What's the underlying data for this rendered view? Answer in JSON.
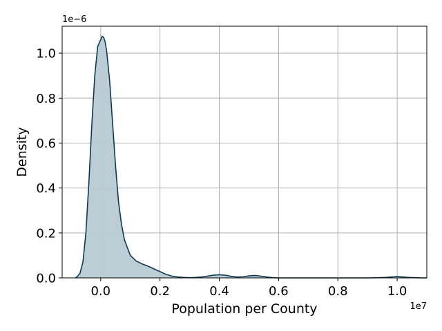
{
  "chart_data": {
    "type": "area",
    "title": "",
    "xlabel": "Population per County",
    "ylabel": "Density",
    "x_offset_label": "1e7",
    "y_offset_label": "1e−6",
    "x_scale": 10000000,
    "y_scale": 1e-06,
    "xlim": [
      -0.13,
      1.1
    ],
    "ylim": [
      0,
      1.12
    ],
    "x_ticks": [
      0.0,
      0.2,
      0.4,
      0.6,
      0.8,
      1.0
    ],
    "x_tick_labels": [
      "0.0",
      "0.2",
      "0.4",
      "0.6",
      "0.8",
      "1.0"
    ],
    "y_ticks": [
      0.0,
      0.2,
      0.4,
      0.6,
      0.8,
      1.0
    ],
    "y_tick_labels": [
      "0.0",
      "0.2",
      "0.4",
      "0.6",
      "0.8",
      "1.0"
    ],
    "grid": true,
    "line_color": "#0b3a52",
    "fill_color": "#b9cad3",
    "series": [
      {
        "x": [
          -0.085,
          -0.08,
          -0.07,
          -0.06,
          -0.05,
          -0.04,
          -0.03,
          -0.02,
          -0.01,
          0.0,
          0.005,
          0.01,
          0.015,
          0.02,
          0.03,
          0.04,
          0.05,
          0.06,
          0.07,
          0.08,
          0.1,
          0.12,
          0.14,
          0.16,
          0.18,
          0.2,
          0.22,
          0.24,
          0.26,
          0.28,
          0.3,
          0.32,
          0.34,
          0.36,
          0.38,
          0.4,
          0.42,
          0.44,
          0.46,
          0.48,
          0.5,
          0.52,
          0.54,
          0.56,
          0.58,
          0.6,
          0.7,
          0.8,
          0.9,
          0.94,
          0.96,
          0.98,
          1.0,
          1.02,
          1.04,
          1.06,
          1.08,
          1.1
        ],
        "y": [
          0.0,
          0.005,
          0.02,
          0.07,
          0.2,
          0.42,
          0.68,
          0.9,
          1.03,
          1.06,
          1.075,
          1.07,
          1.05,
          1.01,
          0.88,
          0.69,
          0.5,
          0.34,
          0.24,
          0.17,
          0.1,
          0.075,
          0.062,
          0.052,
          0.04,
          0.028,
          0.016,
          0.008,
          0.004,
          0.002,
          0.001,
          0.002,
          0.004,
          0.008,
          0.012,
          0.014,
          0.012,
          0.007,
          0.004,
          0.005,
          0.009,
          0.011,
          0.008,
          0.004,
          0.001,
          0.0,
          0.0,
          0.0,
          0.0,
          0.001,
          0.002,
          0.004,
          0.006,
          0.004,
          0.002,
          0.001,
          0.0,
          0.0
        ]
      }
    ]
  }
}
